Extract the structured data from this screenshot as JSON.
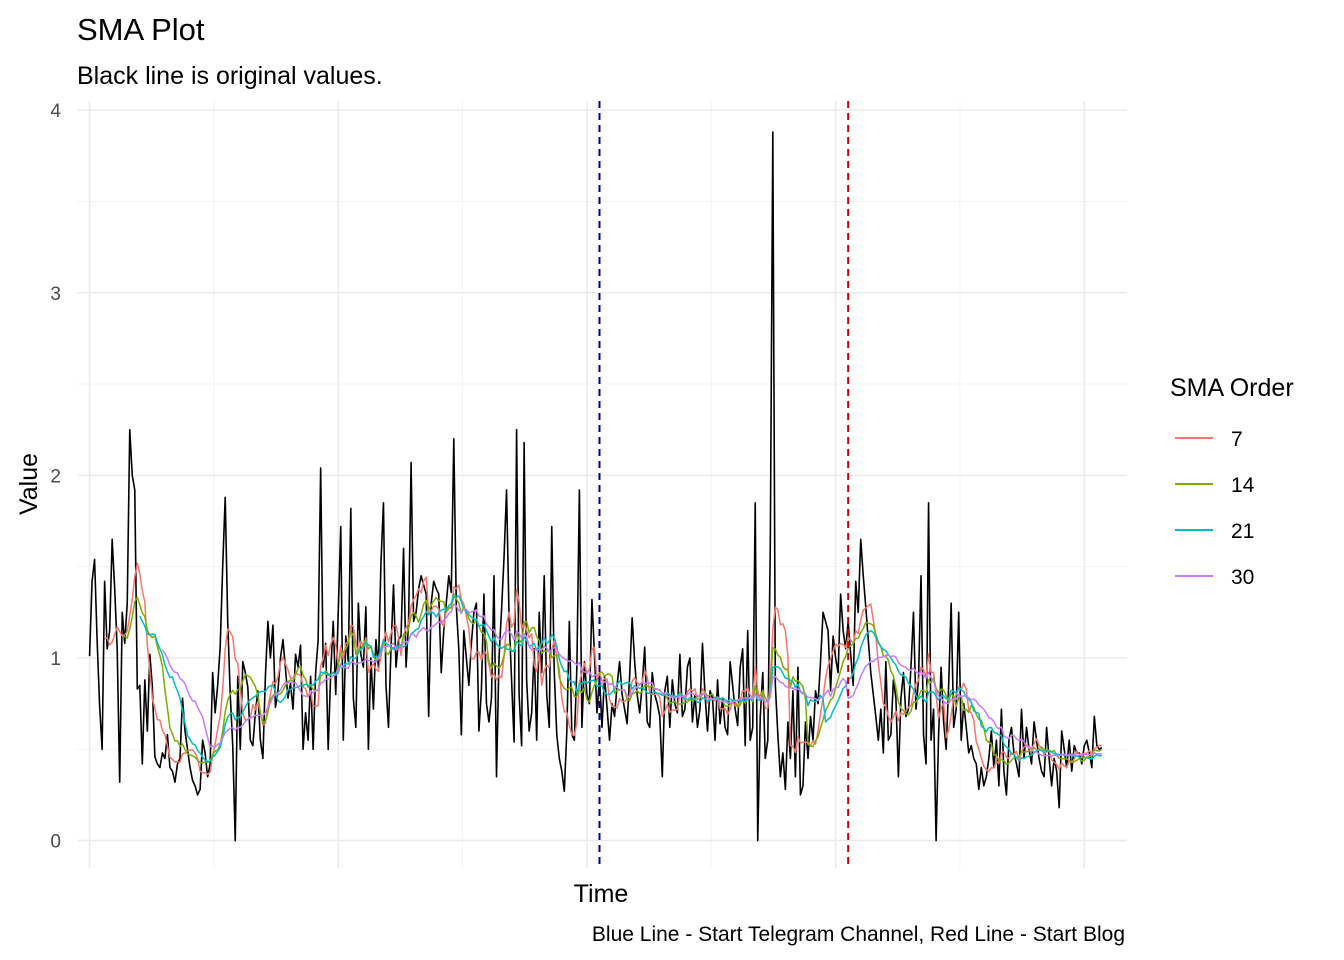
{
  "chart_data": {
    "type": "line",
    "title": "SMA Plot",
    "subtitle": "Black line is original values.",
    "xlabel": "Time",
    "ylabel": "Value",
    "caption": "Blue Line - Start Telegram Channel, Red Line - Start Blog",
    "ylim": [
      -0.15,
      4.05
    ],
    "y_ticks": [
      0,
      1,
      2,
      3,
      4
    ],
    "x_ticks_labeled": false,
    "grid": true,
    "legend": {
      "title": "SMA Order",
      "placement": "right",
      "entries": [
        {
          "label": "7",
          "color": "#F8766D"
        },
        {
          "label": "14",
          "color": "#7CAE00"
        },
        {
          "label": "21",
          "color": "#00BFC4"
        },
        {
          "label": "30",
          "color": "#C77CFF"
        }
      ]
    },
    "x_count": 396,
    "xlim": [
      -5,
      413
    ],
    "original_color": "#000000",
    "original": [
      1.01,
      1.42,
      1.54,
      1.1,
      0.74,
      0.5,
      1.42,
      1.05,
      1.15,
      1.65,
      1.38,
      1.05,
      0.32,
      1.25,
      1.08,
      1.3,
      2.25,
      2.0,
      1.92,
      0.83,
      0.85,
      0.42,
      0.88,
      0.6,
      1.02,
      0.84,
      0.46,
      0.42,
      0.4,
      0.48,
      0.45,
      0.58,
      0.4,
      0.38,
      0.32,
      0.42,
      0.45,
      0.78,
      0.6,
      0.5,
      0.4,
      0.33,
      0.3,
      0.25,
      0.28,
      0.55,
      0.48,
      0.35,
      0.42,
      0.92,
      0.7,
      0.85,
      1.06,
      1.5,
      1.88,
      1.2,
      0.8,
      0.52,
      0.0,
      0.9,
      0.5,
      0.98,
      0.92,
      0.84,
      0.55,
      0.52,
      0.7,
      0.82,
      0.55,
      0.45,
      0.9,
      1.2,
      1.0,
      1.18,
      0.73,
      0.82,
      1.0,
      1.1,
      0.94,
      0.78,
      0.86,
      0.72,
      1.02,
      0.95,
      1.07,
      0.5,
      0.7,
      0.55,
      0.9,
      0.5,
      0.92,
      1.1,
      2.04,
      0.95,
      1.08,
      0.5,
      0.92,
      1.2,
      0.8,
      1.25,
      1.72,
      0.55,
      1.12,
      0.98,
      1.82,
      0.78,
      0.62,
      1.3,
      1.02,
      0.95,
      1.28,
      0.5,
      1.0,
      0.72,
      1.1,
      0.95,
      1.52,
      1.85,
      0.85,
      0.62,
      1.05,
      1.4,
      0.95,
      1.1,
      1.12,
      1.6,
      0.95,
      1.2,
      2.07,
      1.2,
      1.25,
      1.38,
      1.45,
      1.4,
      1.35,
      0.68,
      1.3,
      1.42,
      1.38,
      1.35,
      0.92,
      1.15,
      1.3,
      1.45,
      1.36,
      2.2,
      1.28,
      1.05,
      0.58,
      1.15,
      1.0,
      0.85,
      1.08,
      1.25,
      1.3,
      0.6,
      0.83,
      1.35,
      0.75,
      0.65,
      0.78,
      1.45,
      0.35,
      1.0,
      1.26,
      1.55,
      1.92,
      1.22,
      0.88,
      0.54,
      2.25,
      0.8,
      0.52,
      2.18,
      0.88,
      0.6,
      0.7,
      1.05,
      0.55,
      1.25,
      0.92,
      1.45,
      0.8,
      0.62,
      1.72,
      0.92,
      0.58,
      0.45,
      0.38,
      0.27,
      0.6,
      1.2,
      0.58,
      0.55,
      0.95,
      1.92,
      0.62,
      0.98,
      0.8,
      0.75,
      1.32,
      1.02,
      0.7,
      0.9,
      0.62,
      0.9,
      0.73,
      0.55,
      0.75,
      0.68,
      0.85,
      0.98,
      0.8,
      0.72,
      0.64,
      0.9,
      1.22,
      0.98,
      0.8,
      0.7,
      0.85,
      1.06,
      0.65,
      0.62,
      0.92,
      0.8,
      0.75,
      0.68,
      0.35,
      0.82,
      0.9,
      0.62,
      0.88,
      0.75,
      0.7,
      1.02,
      0.68,
      0.72,
      0.95,
      1.0,
      0.65,
      0.8,
      0.62,
      0.72,
      1.08,
      0.8,
      0.6,
      0.82,
      0.78,
      0.55,
      0.88,
      0.64,
      0.78,
      0.62,
      0.58,
      0.98,
      0.85,
      0.72,
      0.63,
      0.95,
      1.05,
      0.52,
      1.15,
      0.55,
      0.62,
      1.85,
      0.0,
      0.68,
      0.92,
      0.45,
      0.55,
      1.62,
      3.88,
      0.85,
      0.58,
      0.35,
      0.48,
      0.28,
      0.65,
      0.45,
      0.82,
      0.35,
      0.95,
      0.25,
      0.3,
      0.65,
      0.45,
      0.68,
      0.55,
      0.82,
      0.75,
      0.98,
      1.25,
      1.2,
      1.15,
      0.82,
      1.12,
      1.0,
      0.92,
      1.35,
      1.15,
      1.05,
      1.2,
      1.02,
      0.85,
      1.42,
      1.25,
      1.65,
      1.45,
      1.28,
      1.1,
      0.92,
      0.8,
      0.68,
      0.55,
      0.72,
      0.48,
      0.98,
      0.55,
      0.58,
      0.88,
      0.78,
      0.35,
      0.78,
      0.92,
      0.68,
      0.72,
      0.95,
      1.25,
      0.72,
      0.88,
      1.45,
      0.58,
      0.42,
      1.85,
      0.55,
      0.72,
      0.0,
      0.58,
      0.95,
      0.65,
      0.5,
      0.85,
      1.3,
      0.62,
      0.72,
      1.25,
      0.55,
      0.75,
      0.62,
      0.48,
      0.52,
      0.45,
      0.42,
      0.28,
      0.4,
      0.3,
      0.35,
      0.45,
      0.6,
      0.4,
      0.55,
      0.3,
      0.72,
      0.38,
      0.25,
      0.55,
      0.62,
      0.48,
      0.42,
      0.35,
      0.72,
      0.45,
      0.62,
      0.5,
      0.42,
      0.65,
      0.55,
      0.45,
      0.38,
      0.35,
      0.62,
      0.45,
      0.3,
      0.45,
      0.38,
      0.18,
      0.6,
      0.5,
      0.4,
      0.55,
      0.38,
      0.52,
      0.48,
      0.48,
      0.42,
      0.52,
      0.55,
      0.48,
      0.4,
      0.68,
      0.52,
      0.5,
      0.51
    ],
    "sma_orders": [
      7,
      14,
      21,
      30
    ],
    "vlines": [
      {
        "x": 203,
        "color": "#00008B",
        "label": "Start Telegram Channel"
      },
      {
        "x": 302,
        "color": "#CD0000",
        "label": "Start Blog"
      }
    ]
  }
}
